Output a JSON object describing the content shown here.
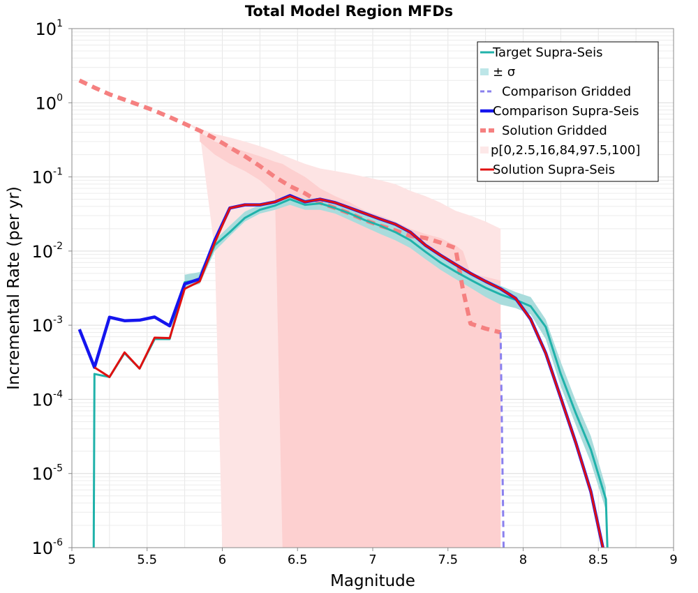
{
  "chart_data": {
    "type": "line",
    "title": "Total Model Region MFDs",
    "xlabel": "Magnitude",
    "ylabel": "Incremental Rate (per yr)",
    "xlim": [
      5,
      9
    ],
    "ylim": [
      1e-06,
      10
    ],
    "yscale": "log",
    "grid": true,
    "legend_position": "top-right",
    "x_ticks": [
      "5",
      "5.5",
      "6",
      "6.5",
      "7",
      "7.5",
      "8",
      "8.5",
      "9"
    ],
    "y_tick_labels": [
      {
        "base": "10",
        "exp": "-6"
      },
      {
        "base": "10",
        "exp": "-5"
      },
      {
        "base": "10",
        "exp": "-4"
      },
      {
        "base": "10",
        "exp": "-3"
      },
      {
        "base": "10",
        "exp": "-2"
      },
      {
        "base": "10",
        "exp": "-1"
      },
      {
        "base": "10",
        "exp": "0"
      },
      {
        "base": "10",
        "exp": "1"
      }
    ],
    "legend": [
      {
        "label": "Target Supra-Seis",
        "color": "#20b2aa",
        "style": "line"
      },
      {
        "label": "± σ",
        "color": "#bde6e8",
        "style": "patch"
      },
      {
        "label": "Comparison Gridded",
        "color": "#8a80ee",
        "style": "dashed"
      },
      {
        "label": "Comparison Supra-Seis",
        "color": "#1515ee",
        "style": "thick"
      },
      {
        "label": "Solution Gridded",
        "color": "#f58080",
        "style": "dashed-thick"
      },
      {
        "label": "p[0,2.5,16,84,97.5,100]",
        "color": "#fde8e8",
        "style": "patch"
      },
      {
        "label": "Solution Supra-Seis",
        "color": "#e01010",
        "style": "line"
      }
    ],
    "bands": [
      {
        "name": "p[0,2.5,16,84,97.5,100] outer",
        "color": "#fde4e4",
        "x": [
          5.05,
          5.15,
          5.25,
          5.35,
          5.45,
          5.55,
          5.65,
          5.75,
          5.85,
          5.95,
          6.0,
          6.05,
          6.15,
          6.25,
          6.35,
          6.45,
          6.55,
          6.65,
          6.75,
          6.85,
          6.95,
          7.05,
          7.15,
          7.25,
          7.35,
          7.45,
          7.55,
          7.65,
          7.75,
          7.85
        ],
        "upper": [
          2.05,
          1.6,
          1.35,
          1.1,
          0.95,
          0.8,
          0.66,
          0.55,
          0.45,
          0.38,
          0.36,
          0.34,
          0.3,
          0.26,
          0.22,
          0.18,
          0.15,
          0.13,
          0.12,
          0.11,
          0.1,
          0.09,
          0.08,
          0.065,
          0.055,
          0.045,
          0.035,
          0.03,
          0.025,
          0.02
        ],
        "lower": [
          2.05,
          1.6,
          1.35,
          1.1,
          0.95,
          0.8,
          0.66,
          0.55,
          0.4,
          0.01,
          1e-06,
          1e-06,
          1e-06,
          1e-06,
          1e-06,
          1e-06,
          1e-06,
          1e-06,
          1e-06,
          1e-06,
          1e-06,
          1e-06,
          1e-06,
          1e-06,
          1e-06,
          1e-06,
          1e-06,
          1e-06,
          1e-06,
          1e-06
        ]
      },
      {
        "name": "p[0,2.5,16,84,97.5,100] middle",
        "color": "#fdd0d0",
        "x": [
          5.85,
          5.95,
          6.05,
          6.15,
          6.25,
          6.35,
          6.4,
          6.45,
          6.55,
          6.65,
          6.75,
          6.85,
          6.95,
          7.05,
          7.15,
          7.25,
          7.35,
          7.45,
          7.55,
          7.6,
          7.65,
          7.75,
          7.85
        ],
        "upper": [
          0.4,
          0.3,
          0.26,
          0.22,
          0.19,
          0.16,
          0.15,
          0.13,
          0.1,
          0.07,
          0.055,
          0.045,
          0.035,
          0.03,
          0.025,
          0.02,
          0.017,
          0.015,
          0.012,
          0.01,
          0.005,
          0.0045,
          0.004
        ],
        "lower": [
          0.3,
          0.2,
          0.15,
          0.12,
          0.09,
          0.06,
          1e-06,
          1e-06,
          1e-06,
          1e-06,
          1e-06,
          1e-06,
          1e-06,
          1e-06,
          1e-06,
          1e-06,
          1e-06,
          1e-06,
          1e-06,
          1e-06,
          1e-06,
          1e-06,
          1e-06
        ]
      },
      {
        "name": "± σ",
        "color": "#a9dcdc",
        "x": [
          5.75,
          5.85,
          5.95,
          6.05,
          6.15,
          6.25,
          6.35,
          6.45,
          6.55,
          6.65,
          6.75,
          6.85,
          6.95,
          7.05,
          7.15,
          7.25,
          7.35,
          7.45,
          7.55,
          7.65,
          7.75,
          7.85,
          7.95,
          8.05,
          8.15,
          8.25,
          8.35,
          8.45,
          8.55
        ],
        "upper": [
          0.0048,
          0.0052,
          0.014,
          0.022,
          0.034,
          0.042,
          0.047,
          0.058,
          0.05,
          0.052,
          0.045,
          0.039,
          0.032,
          0.027,
          0.022,
          0.017,
          0.012,
          0.0085,
          0.0068,
          0.0052,
          0.0041,
          0.0034,
          0.0028,
          0.0024,
          0.0012,
          0.00032,
          9.5e-05,
          3.2e-05,
          6.5e-06
        ],
        "lower": [
          0.0032,
          0.0036,
          0.01,
          0.016,
          0.025,
          0.032,
          0.036,
          0.042,
          0.036,
          0.036,
          0.032,
          0.026,
          0.021,
          0.017,
          0.014,
          0.011,
          0.0078,
          0.0056,
          0.0042,
          0.0032,
          0.0024,
          0.0019,
          0.0017,
          0.0014,
          0.00065,
          0.00015,
          4.5e-05,
          1.4e-05,
          3.2e-06
        ]
      }
    ],
    "series": [
      {
        "name": "Solution Gridded",
        "color": "#f58080",
        "style": "dashed-thick",
        "x": [
          5.05,
          5.15,
          5.25,
          5.35,
          5.45,
          5.55,
          5.65,
          5.75,
          5.85,
          5.95,
          6.05,
          6.15,
          6.25,
          6.35,
          6.45,
          6.55,
          6.65,
          6.75,
          6.85,
          6.95,
          7.05,
          7.15,
          7.25,
          7.35,
          7.45,
          7.55,
          7.6,
          7.65,
          7.75,
          7.85
        ],
        "values": [
          2.0,
          1.6,
          1.3,
          1.1,
          0.93,
          0.78,
          0.64,
          0.52,
          0.42,
          0.33,
          0.25,
          0.19,
          0.14,
          0.1,
          0.075,
          0.06,
          0.045,
          0.038,
          0.032,
          0.026,
          0.022,
          0.019,
          0.016,
          0.015,
          0.013,
          0.011,
          0.003,
          0.00105,
          0.0009,
          0.0008
        ]
      },
      {
        "name": "Comparison Gridded",
        "color": "#8a80ee",
        "style": "dashed",
        "x": [
          7.85,
          7.87
        ],
        "values": [
          0.0008,
          1e-06
        ]
      },
      {
        "name": "Target Supra-Seis",
        "color": "#20b2aa",
        "style": "line",
        "x": [
          5.145,
          5.15,
          5.25,
          5.35,
          5.45,
          5.55,
          5.65,
          5.75,
          5.85,
          5.95,
          6.05,
          6.15,
          6.25,
          6.35,
          6.45,
          6.55,
          6.65,
          6.75,
          6.85,
          6.95,
          7.05,
          7.15,
          7.25,
          7.35,
          7.45,
          7.55,
          7.65,
          7.75,
          7.85,
          7.95,
          8.05,
          8.15,
          8.25,
          8.35,
          8.45,
          8.55,
          8.56
        ],
        "values": [
          1e-06,
          0.00022,
          0.0002,
          0.00042,
          0.00026,
          0.00065,
          0.00065,
          0.0038,
          0.0041,
          0.012,
          0.018,
          0.028,
          0.036,
          0.041,
          0.05,
          0.042,
          0.044,
          0.038,
          0.032,
          0.026,
          0.022,
          0.018,
          0.014,
          0.0098,
          0.007,
          0.0053,
          0.0041,
          0.0032,
          0.0026,
          0.0022,
          0.0018,
          0.00095,
          0.00022,
          6.5e-05,
          2.1e-05,
          4.5e-06,
          1e-06
        ]
      },
      {
        "name": "Comparison Supra-Seis",
        "color": "#1515ee",
        "style": "thick",
        "x": [
          5.05,
          5.15,
          5.25,
          5.35,
          5.45,
          5.55,
          5.65,
          5.75,
          5.85,
          5.95,
          6.05,
          6.15,
          6.25,
          6.35,
          6.45,
          6.55,
          6.65,
          6.75,
          6.85,
          6.95,
          7.05,
          7.15,
          7.25,
          7.35,
          7.45,
          7.55,
          7.65,
          7.75,
          7.85,
          7.95,
          8.05,
          8.15,
          8.25,
          8.35,
          8.45,
          8.53
        ],
        "values": [
          0.00088,
          0.00027,
          0.00128,
          0.00115,
          0.00117,
          0.00129,
          0.00098,
          0.0036,
          0.0042,
          0.014,
          0.038,
          0.042,
          0.042,
          0.046,
          0.056,
          0.046,
          0.05,
          0.045,
          0.038,
          0.032,
          0.027,
          0.023,
          0.018,
          0.012,
          0.0088,
          0.0066,
          0.005,
          0.0039,
          0.0031,
          0.0023,
          0.0012,
          0.00042,
          0.000105,
          2.6e-05,
          5.7e-06,
          1e-06
        ]
      },
      {
        "name": "Solution Supra-Seis",
        "color": "#e01010",
        "style": "line",
        "x": [
          5.15,
          5.25,
          5.35,
          5.45,
          5.55,
          5.65,
          5.75,
          5.85,
          5.95,
          6.05,
          6.15,
          6.25,
          6.35,
          6.45,
          6.55,
          6.65,
          6.75,
          6.85,
          6.95,
          7.05,
          7.15,
          7.25,
          7.35,
          7.45,
          7.55,
          7.65,
          7.75,
          7.85,
          7.95,
          8.05,
          8.15,
          8.25,
          8.35,
          8.45,
          8.53
        ],
        "values": [
          0.00027,
          0.0002,
          0.00043,
          0.00026,
          0.00068,
          0.00067,
          0.0031,
          0.0039,
          0.013,
          0.038,
          0.042,
          0.042,
          0.046,
          0.055,
          0.046,
          0.05,
          0.045,
          0.038,
          0.032,
          0.027,
          0.023,
          0.018,
          0.012,
          0.0088,
          0.0066,
          0.005,
          0.0039,
          0.0031,
          0.0023,
          0.0012,
          0.00042,
          0.000105,
          2.6e-05,
          5.7e-06,
          1e-06
        ]
      }
    ]
  }
}
